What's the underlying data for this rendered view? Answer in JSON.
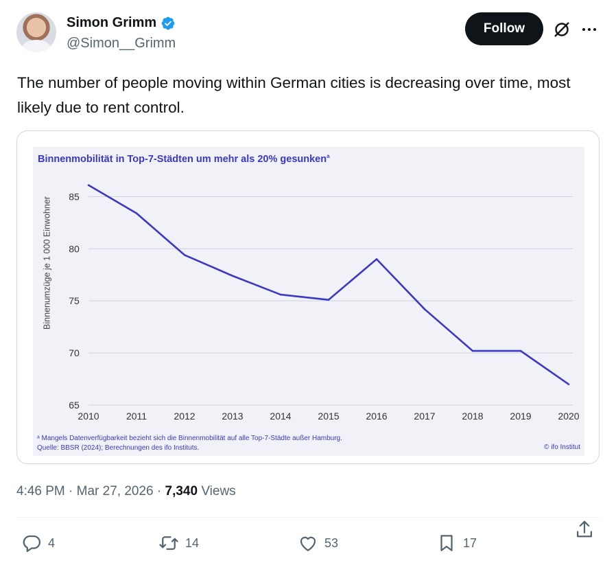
{
  "author": {
    "name": "Simon Grimm",
    "handle": "@Simon__Grimm",
    "verified_color": "#1d9bf0"
  },
  "header": {
    "follow_label": "Follow"
  },
  "tweet": {
    "text": "The number of people moving within German cities is decreasing over time, most likely due to rent control."
  },
  "chart_data": {
    "type": "line",
    "title": "Binnenmobilität in Top-7-Städten um mehr als 20% gesunken",
    "title_marker": "a",
    "xlabel": "",
    "ylabel": "Binnenumzüge je 1 000 Einwohner",
    "x": [
      2010,
      2011,
      2012,
      2013,
      2014,
      2015,
      2016,
      2017,
      2018,
      2019,
      2020
    ],
    "y_ticks": [
      65,
      70,
      75,
      80,
      85
    ],
    "ylim": [
      65,
      87
    ],
    "grid": true,
    "series": [
      {
        "values": [
          86.1,
          83.4,
          79.4,
          77.4,
          75.6,
          75.1,
          79.0,
          74.2,
          70.2,
          70.2,
          67.0
        ],
        "color": "#3b38c4"
      }
    ],
    "footnote_line1": "ᵃ Mangels Datenverfügbarkeit bezieht sich die Binnenmobilität auf alle Top-7-Städte außer Hamburg.",
    "footnote_line2": "Quelle: BBSR (2024); Berechnungen des ifo Instituts.",
    "credit": "© ifo Institut"
  },
  "meta": {
    "time": "4:46 PM",
    "sep1": " · ",
    "date": "Mar 27, 2026",
    "sep2": " · ",
    "views_count": "7,340",
    "views_label": " Views"
  },
  "actions": {
    "replies": "4",
    "reposts": "14",
    "likes": "53",
    "bookmarks": "17"
  }
}
